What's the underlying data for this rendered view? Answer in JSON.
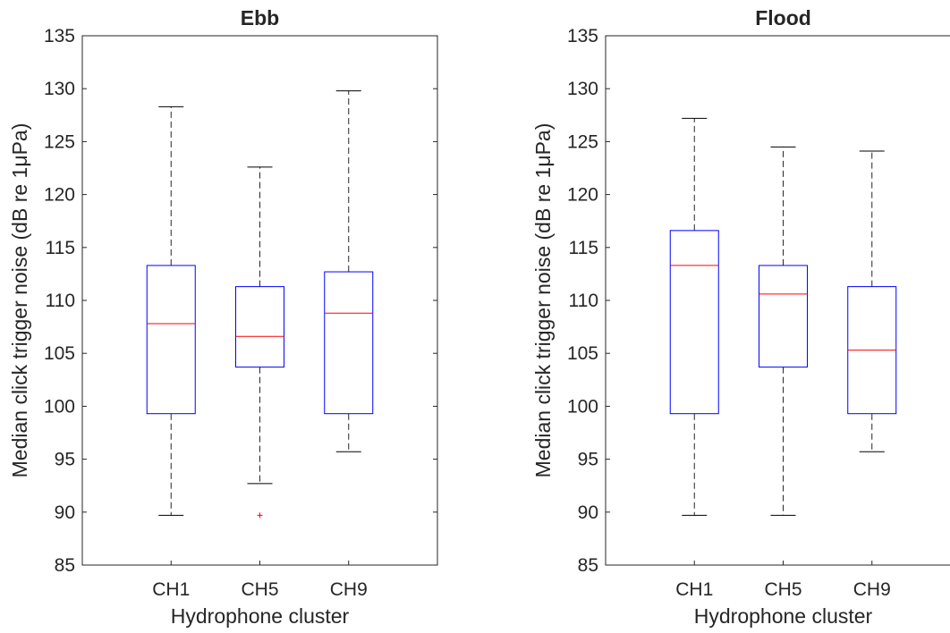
{
  "chart_data": [
    {
      "type": "box",
      "title": "Ebb",
      "xlabel": "Hydrophone cluster",
      "ylabel": "Median click trigger noise (dB re 1μPa)",
      "ylim": [
        85,
        135
      ],
      "yticks": [
        85,
        90,
        95,
        100,
        105,
        110,
        115,
        120,
        125,
        130,
        135
      ],
      "categories": [
        "CH1",
        "CH5",
        "CH9"
      ],
      "boxes": [
        {
          "category": "CH1",
          "whisker_low": 89.7,
          "q1": 99.3,
          "median": 107.8,
          "q3": 113.3,
          "whisker_high": 128.3,
          "outliers": []
        },
        {
          "category": "CH5",
          "whisker_low": 92.7,
          "q1": 103.7,
          "median": 106.6,
          "q3": 111.3,
          "whisker_high": 122.6,
          "outliers": [
            89.7
          ]
        },
        {
          "category": "CH9",
          "whisker_low": 95.7,
          "q1": 99.3,
          "median": 108.8,
          "q3": 112.7,
          "whisker_high": 129.8,
          "outliers": []
        }
      ],
      "colors": {
        "box": "#0000ff",
        "median": "#ff0000",
        "whisker": "#000000",
        "outlier": "#ff0000"
      }
    },
    {
      "type": "box",
      "title": "Flood",
      "xlabel": "Hydrophone cluster",
      "ylabel": "Median click trigger noise (dB re 1μPa)",
      "ylim": [
        85,
        135
      ],
      "yticks": [
        85,
        90,
        95,
        100,
        105,
        110,
        115,
        120,
        125,
        130,
        135
      ],
      "categories": [
        "CH1",
        "CH5",
        "CH9"
      ],
      "boxes": [
        {
          "category": "CH1",
          "whisker_low": 89.7,
          "q1": 99.3,
          "median": 113.3,
          "q3": 116.6,
          "whisker_high": 127.2,
          "outliers": []
        },
        {
          "category": "CH5",
          "whisker_low": 89.7,
          "q1": 103.7,
          "median": 110.6,
          "q3": 113.3,
          "whisker_high": 124.5,
          "outliers": []
        },
        {
          "category": "CH9",
          "whisker_low": 95.7,
          "q1": 99.3,
          "median": 105.3,
          "q3": 111.3,
          "whisker_high": 124.1,
          "outliers": []
        }
      ],
      "colors": {
        "box": "#0000ff",
        "median": "#ff0000",
        "whisker": "#000000",
        "outlier": "#ff0000"
      }
    }
  ]
}
